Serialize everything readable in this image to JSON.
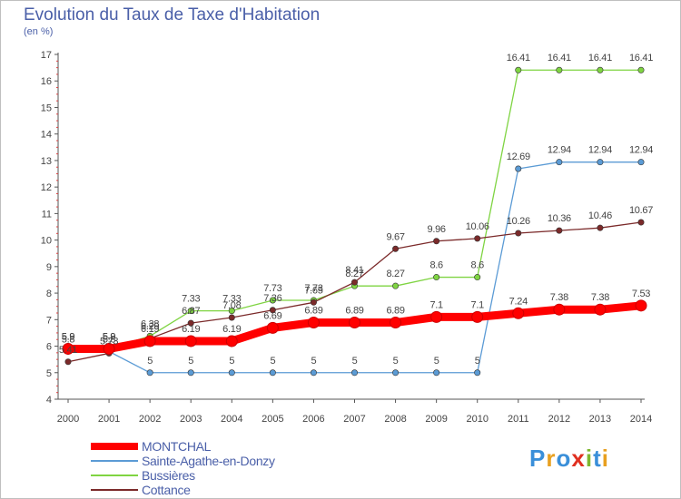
{
  "title": "Evolution du Taux de Taxe d'Habitation",
  "unit_label": "(en %)",
  "logo_text": "Proxiti",
  "chart_data": {
    "type": "line",
    "title": "Evolution du Taux de Taxe d'Habitation",
    "ylabel": "(en %)",
    "xlabel": "",
    "x": [
      "2000",
      "2001",
      "2002",
      "2003",
      "2004",
      "2005",
      "2006",
      "2007",
      "2008",
      "2009",
      "2010",
      "2011",
      "2012",
      "2013",
      "2014"
    ],
    "ylim": [
      4,
      17
    ],
    "yticks": [
      4,
      5,
      6,
      7,
      8,
      9,
      10,
      11,
      12,
      13,
      14,
      15,
      16,
      17
    ],
    "grid": false,
    "legend_position": "bottom-left",
    "series": [
      {
        "name": "MONTCHAL",
        "color": "#ff0000",
        "values": [
          5.9,
          5.9,
          6.19,
          6.19,
          6.19,
          6.69,
          6.89,
          6.89,
          6.89,
          7.1,
          7.1,
          7.24,
          7.38,
          7.38,
          7.53
        ],
        "labels": [
          "5.9",
          "5.9",
          "6.19",
          "6.19",
          "6.19",
          "6.69",
          "6.89",
          "6.89",
          "6.89",
          "7.1",
          "7.1",
          "7.24",
          "7.38",
          "7.38",
          "7.53"
        ]
      },
      {
        "name": "Sainte-Agathe-en-Donzy",
        "color": "#5b9bd5",
        "values": [
          5.8,
          5.8,
          5,
          5,
          5,
          5,
          5,
          5,
          5,
          5,
          5,
          12.69,
          12.94,
          12.94,
          12.94
        ],
        "labels": [
          "5.8",
          "5.8",
          "5",
          "5",
          "5",
          "5",
          "5",
          "5",
          "5",
          "5",
          "5",
          "12.69",
          "12.94",
          "12.94",
          "12.94"
        ]
      },
      {
        "name": "Bussières",
        "color": "#7fd442",
        "values": [
          5.9,
          5.9,
          6.38,
          7.33,
          7.33,
          7.73,
          7.73,
          8.27,
          8.27,
          8.6,
          8.6,
          16.41,
          16.41,
          16.41,
          16.41
        ],
        "labels": [
          "5.9",
          "5.9",
          "6.38",
          "7.33",
          "7.33",
          "7.73",
          "7.73",
          "8.27",
          "8.27",
          "8.6",
          "8.6",
          "16.41",
          "16.41",
          "16.41",
          "16.41"
        ]
      },
      {
        "name": "Cottance",
        "color": "#7b2a2a",
        "values": [
          5.41,
          5.73,
          6.29,
          6.87,
          7.08,
          7.36,
          7.65,
          8.41,
          9.67,
          9.96,
          10.06,
          10.26,
          10.36,
          10.46,
          10.67
        ],
        "labels": [
          "5.41",
          "5.73",
          "6.29",
          "6.87",
          "7.08",
          "7.36",
          "7.65",
          "8.41",
          "9.67",
          "9.96",
          "10.06",
          "10.26",
          "10.36",
          "10.46",
          "10.67"
        ]
      }
    ]
  },
  "style": {
    "axis_color": "#555555",
    "tick_color": "#d94040",
    "text_color": "#444444",
    "label_color": "#4a5fa8",
    "logo_colors": [
      "#3a8fd9",
      "#e8a020",
      "#3a8fd9",
      "#e03020",
      "#7fb830",
      "#3a8fd9",
      "#e8a020"
    ]
  }
}
